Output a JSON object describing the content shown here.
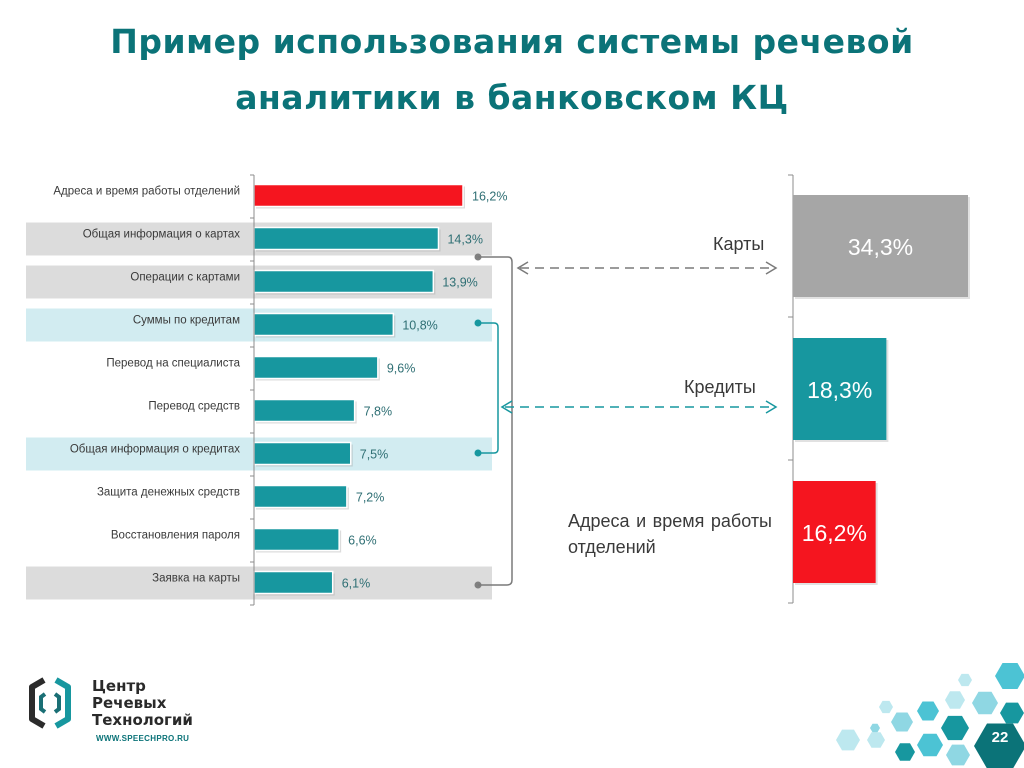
{
  "slide": {
    "title_line1": "Пример использования системы речевой",
    "title_line2": "аналитики в банковском КЦ",
    "page_number": "22"
  },
  "logo": {
    "line1": "Центр",
    "line2": "Речевых",
    "line3": "Технологий",
    "url": "WWW.SPEECHPRO.RU"
  },
  "colors": {
    "teal": "#17979f",
    "red": "#f5151f",
    "gray": "#a6a6a6",
    "highlight_gray": "#dcdcdc",
    "highlight_blue": "#d2ecf1",
    "title": "#0b7378"
  },
  "chart_data": [
    {
      "type": "bar",
      "orientation": "horizontal",
      "categories": [
        "Адреса и время работы отделений",
        "Общая информация о картах",
        "Операции с картами",
        "Суммы по кредитам",
        "Перевод на специалиста",
        "Перевод средств",
        "Общая информация о кредитах",
        "Защита денежных средств",
        "Восстановления пароля",
        "Заявка на карты"
      ],
      "values": [
        16.2,
        14.3,
        13.9,
        10.8,
        9.6,
        7.8,
        7.5,
        7.2,
        6.6,
        6.1
      ],
      "value_labels": [
        "16,2%",
        "14,3%",
        "13,9%",
        "10,8%",
        "9,6%",
        "7,8%",
        "7,5%",
        "7,2%",
        "6,6%",
        "6,1%"
      ],
      "bar_colors": [
        "red",
        "teal",
        "teal",
        "teal",
        "teal",
        "teal",
        "teal",
        "teal",
        "teal",
        "teal"
      ],
      "row_highlights": [
        "none",
        "gray",
        "gray",
        "blue",
        "none",
        "none",
        "blue",
        "none",
        "none",
        "gray"
      ],
      "title": "",
      "xlabel": "",
      "ylabel": ""
    },
    {
      "type": "bar",
      "orientation": "horizontal",
      "categories": [
        "Карты",
        "Кредиты",
        "Адреса и время работы отделений"
      ],
      "values": [
        34.3,
        18.3,
        16.2
      ],
      "value_labels": [
        "34,3%",
        "18,3%",
        "16,2%"
      ],
      "bar_colors": [
        "gray",
        "teal",
        "red"
      ],
      "title": "",
      "xlabel": "",
      "ylabel": ""
    }
  ]
}
